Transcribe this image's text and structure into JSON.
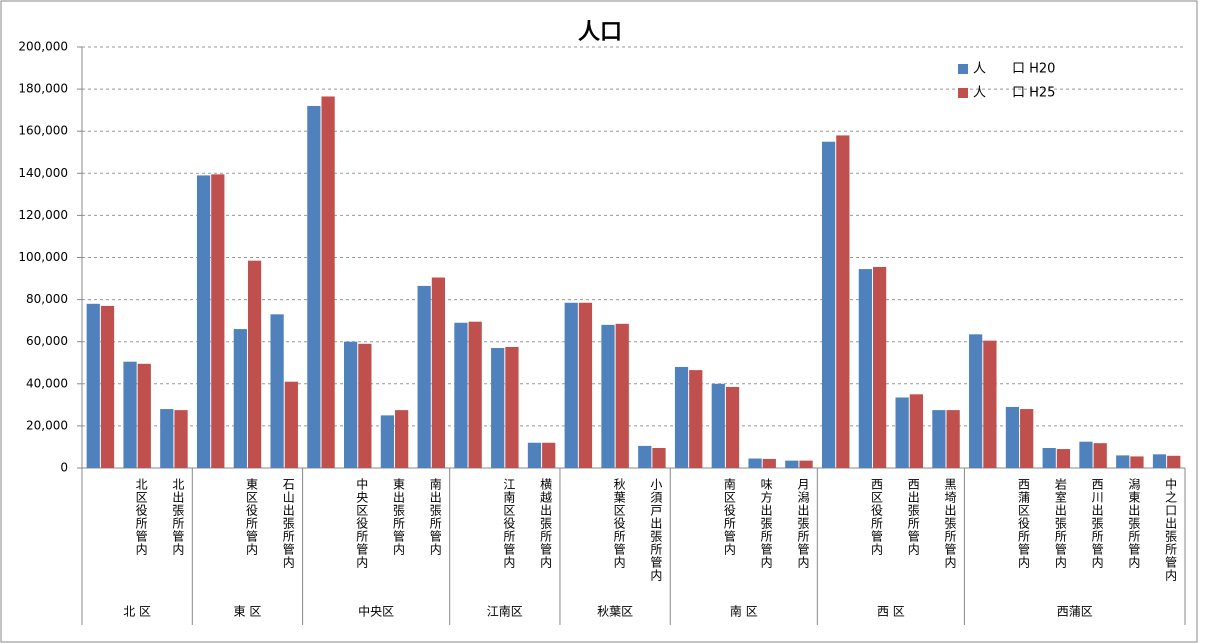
{
  "chart_data": {
    "type": "bar",
    "title": "人口",
    "groups": [
      {
        "name": "北 区",
        "categories": [
          null,
          "北区役所管内",
          "北出張所管内"
        ]
      },
      {
        "name": "東 区",
        "categories": [
          null,
          "東区役所管内",
          "石山出張所管内"
        ]
      },
      {
        "name": "中央区",
        "categories": [
          null,
          "中央区役所管内",
          "東出張所管内",
          "南出張所管内"
        ]
      },
      {
        "name": "江南区",
        "categories": [
          null,
          "江南区役所管内",
          "横越出張所管内"
        ]
      },
      {
        "name": "秋葉区",
        "categories": [
          null,
          "秋葉区役所管内",
          "小須戸出張所管内"
        ]
      },
      {
        "name": "南 区",
        "categories": [
          null,
          "南区役所管内",
          "味方出張所管内",
          "月潟出張所管内"
        ]
      },
      {
        "name": "西 区",
        "categories": [
          null,
          "西区役所管内",
          "西出張所管内",
          "黒埼出張所管内"
        ]
      },
      {
        "name": "西蒲区",
        "categories": [
          null,
          "西蒲区役所管内",
          "岩室出張所管内",
          "西川出張所管内",
          "潟東出張所管内",
          "中之口出張所管内"
        ]
      }
    ],
    "series": [
      {
        "name": "人　　口 H20",
        "color": "#4f81bd",
        "values": [
          78000,
          50500,
          28000,
          139000,
          66000,
          73000,
          172000,
          60000,
          25000,
          86500,
          69000,
          57000,
          12000,
          78500,
          68000,
          10500,
          48000,
          40000,
          4500,
          3500,
          155000,
          94500,
          33500,
          27500,
          63500,
          29000,
          9500,
          12500,
          6000,
          6500
        ]
      },
      {
        "name": "人　　口 H25",
        "color": "#c0504d",
        "values": [
          77000,
          49500,
          27500,
          139500,
          98500,
          41000,
          176500,
          59000,
          27500,
          90500,
          69500,
          57500,
          12000,
          78500,
          68500,
          9500,
          46500,
          38500,
          4300,
          3500,
          158000,
          95500,
          35000,
          27500,
          60500,
          28000,
          9000,
          11800,
          5500,
          5800
        ]
      }
    ],
    "ylim": [
      0,
      200000
    ],
    "yticks": [
      0,
      {
        "value": 20000,
        "label": "20,000"
      },
      {
        "value": 40000,
        "label": "40,000"
      },
      {
        "value": 60000,
        "label": "60,000"
      },
      {
        "value": 80000,
        "label": "80,000"
      },
      {
        "value": 100000,
        "label": "100,000"
      },
      {
        "value": 120000,
        "label": "120,000"
      },
      {
        "value": 140000,
        "label": "140,000"
      },
      {
        "value": 160000,
        "label": "160,000"
      },
      {
        "value": 180000,
        "label": "180,000"
      },
      {
        "value": 200000,
        "label": "200,000"
      }
    ],
    "grid": true,
    "legend": "top-right"
  }
}
